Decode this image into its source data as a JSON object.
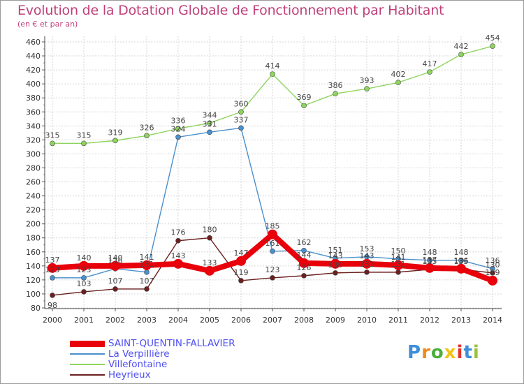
{
  "title": "Evolution de la Dotation Globale de Fonctionnement par Habitant",
  "subtitle": "(en € et par an)",
  "logo": {
    "letters": [
      "P",
      "r",
      "o",
      "x",
      "i",
      "t",
      "i"
    ],
    "colors": [
      "#3e8fd8",
      "#f08a1c",
      "#4cae3c",
      "#f2c315",
      "#e0332f",
      "#3e8fd8",
      "#9bc23c"
    ]
  },
  "chart_data": {
    "type": "line",
    "title": "Evolution de la Dotation Globale de Fonctionnement par Habitant",
    "ylabel": "(en € et par an)",
    "x": [
      "2000",
      "2001",
      "2002",
      "2003",
      "2004",
      "2005",
      "2006",
      "2007",
      "2008",
      "2009",
      "2010",
      "2011",
      "2012",
      "2013",
      "2014"
    ],
    "yticks": [
      "80",
      "100",
      "120",
      "140",
      "160",
      "180",
      "200",
      "220",
      "240",
      "260",
      "280",
      "300",
      "320",
      "340",
      "360",
      "380",
      "400",
      "420",
      "440",
      "460"
    ],
    "ylim": [
      80,
      460
    ],
    "grid": true,
    "legend_position": "bottom-left",
    "series": [
      {
        "name": "SAINT-QUENTIN-FALLAVIER",
        "color": "#e8000b",
        "style": "bold",
        "values": [
          137,
          140,
          140,
          141,
          143,
          133,
          147,
          185,
          144,
          143,
          143,
          141,
          137,
          136,
          119
        ],
        "labels": [
          "137",
          "140",
          "140",
          "141",
          "143",
          "133",
          "147",
          "185",
          "144",
          "143",
          "143",
          "141",
          "137",
          "136",
          "119"
        ]
      },
      {
        "name": "La Verpillière",
        "color": "#4a90cc",
        "style": "thin",
        "values": [
          123,
          123,
          136,
          131,
          324,
          331,
          337,
          161,
          162,
          151,
          153,
          150,
          148,
          148,
          136
        ],
        "labels": [
          "123",
          "123",
          "136",
          "131",
          "324",
          "331",
          "337",
          "161",
          "162",
          "151",
          "153",
          "150",
          "148",
          "148",
          "136"
        ]
      },
      {
        "name": "Villefontaine",
        "color": "#8fd45f",
        "style": "thin",
        "values": [
          315,
          315,
          319,
          326,
          336,
          344,
          360,
          414,
          369,
          386,
          393,
          402,
          417,
          442,
          454
        ],
        "labels": [
          "315",
          "315",
          "319",
          "326",
          "336",
          "344",
          "360",
          "414",
          "369",
          "386",
          "393",
          "402",
          "417",
          "442",
          "454"
        ]
      },
      {
        "name": "Heyrieux",
        "color": "#6b1f1f",
        "style": "thin",
        "values": [
          98,
          103,
          107,
          107,
          176,
          180,
          119,
          123,
          126,
          130,
          131,
          131,
          135,
          135,
          130
        ],
        "labels": [
          "98",
          "103",
          "107",
          "107",
          "176",
          "180",
          "119",
          "123",
          "126",
          "130",
          "131",
          "131",
          "135",
          "135",
          "130"
        ]
      }
    ]
  }
}
